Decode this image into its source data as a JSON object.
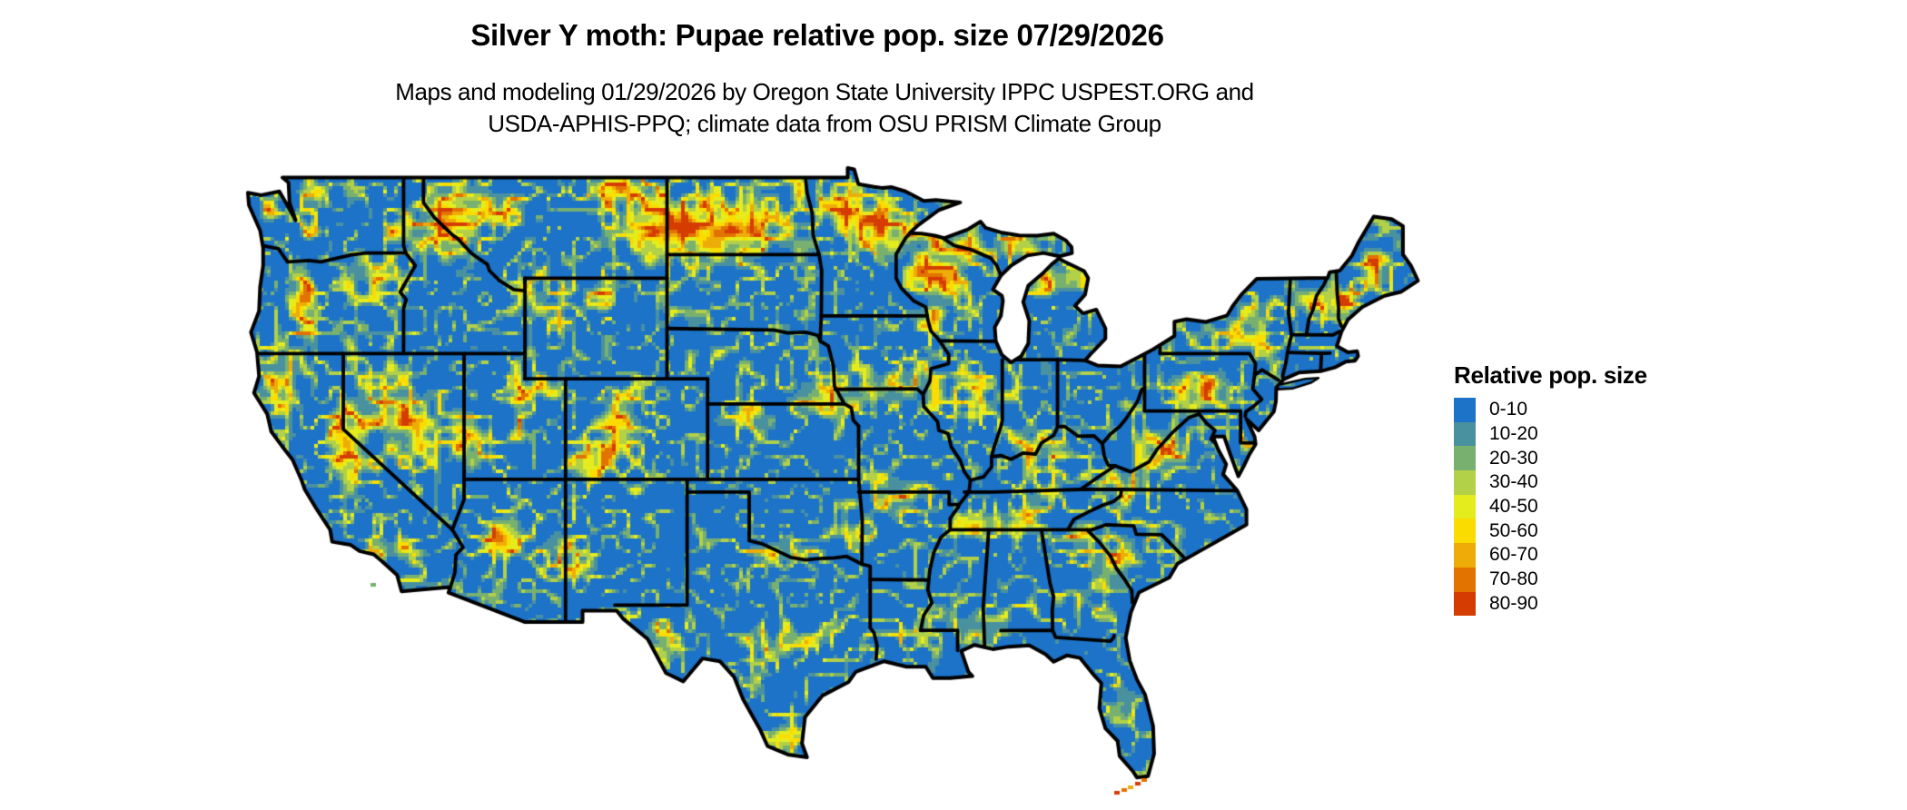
{
  "header": {
    "title": "Silver Y moth: Pupae relative pop. size 07/29/2026",
    "subtitle_line1": "Maps and modeling 01/29/2026 by Oregon State University IPPC USPEST.ORG and",
    "subtitle_line2": "USDA-APHIS-PPQ; climate data from OSU PRISM Climate Group"
  },
  "legend": {
    "title": "Relative pop. size",
    "items": [
      {
        "label": "0-10",
        "color": "#1C73C8"
      },
      {
        "label": "10-20",
        "color": "#4A91A0"
      },
      {
        "label": "20-30",
        "color": "#78B070"
      },
      {
        "label": "30-40",
        "color": "#B2D048"
      },
      {
        "label": "40-50",
        "color": "#E5EC1E"
      },
      {
        "label": "50-60",
        "color": "#FADC00"
      },
      {
        "label": "60-70",
        "color": "#EEAC08"
      },
      {
        "label": "70-80",
        "color": "#E27300"
      },
      {
        "label": "80-90",
        "color": "#D53C02"
      }
    ]
  },
  "map": {
    "state_border_color": "#000000",
    "water_color": "#FFFFFF",
    "base_color": "#1C73C8"
  }
}
